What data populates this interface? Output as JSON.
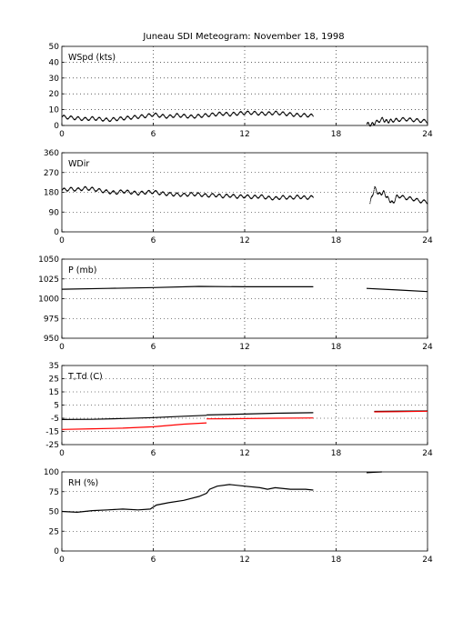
{
  "title": "Juneau SDI Meteogram:  November 18, 1998",
  "chart_data": [
    {
      "type": "scatter",
      "label": "WSpd (kts)",
      "x_ticks": [
        0,
        6,
        12,
        18,
        24
      ],
      "y_ticks": [
        0,
        10,
        20,
        30,
        40,
        50
      ],
      "xlim": [
        0,
        24
      ],
      "ylim": [
        0,
        50
      ],
      "grid": true,
      "series": [
        {
          "color": "#000000",
          "style": "dots",
          "segments": [
            [
              [
                0.0,
                5.5
              ],
              [
                0.5,
                5.0
              ],
              [
                1.0,
                4.5
              ],
              [
                1.5,
                4.0
              ],
              [
                2.0,
                4.5
              ],
              [
                2.5,
                4.0
              ],
              [
                3.0,
                3.5
              ],
              [
                3.5,
                4.0
              ],
              [
                4.0,
                4.5
              ],
              [
                4.5,
                5.0
              ],
              [
                5.0,
                5.5
              ],
              [
                5.5,
                6.0
              ],
              [
                6.0,
                7.0
              ],
              [
                6.5,
                6.0
              ],
              [
                7.0,
                5.5
              ],
              [
                7.5,
                6.5
              ],
              [
                8.0,
                6.0
              ],
              [
                8.5,
                5.5
              ],
              [
                9.0,
                6.0
              ],
              [
                9.5,
                6.5
              ],
              [
                10.0,
                7.0
              ],
              [
                10.5,
                7.5
              ],
              [
                11.0,
                7.0
              ],
              [
                11.5,
                7.5
              ],
              [
                12.0,
                8.0
              ],
              [
                12.5,
                8.0
              ],
              [
                13.0,
                7.5
              ],
              [
                13.5,
                7.5
              ],
              [
                14.0,
                8.0
              ],
              [
                14.5,
                7.5
              ],
              [
                15.0,
                7.0
              ],
              [
                15.5,
                6.5
              ],
              [
                16.0,
                6.5
              ],
              [
                16.5,
                6.0
              ]
            ],
            [
              [
                20.0,
                1.0
              ],
              [
                20.3,
                0.5
              ],
              [
                20.6,
                2.0
              ],
              [
                21.0,
                4.0
              ],
              [
                21.3,
                2.5
              ],
              [
                21.6,
                3.0
              ],
              [
                22.0,
                3.5
              ],
              [
                22.5,
                4.0
              ],
              [
                23.0,
                3.5
              ],
              [
                23.5,
                3.0
              ],
              [
                24.0,
                2.5
              ]
            ]
          ]
        }
      ]
    },
    {
      "type": "scatter",
      "label": "WDir",
      "x_ticks": [
        0,
        6,
        12,
        18,
        24
      ],
      "y_ticks": [
        0,
        90,
        180,
        270,
        360
      ],
      "xlim": [
        0,
        24
      ],
      "ylim": [
        0,
        360
      ],
      "grid": true,
      "series": [
        {
          "color": "#000000",
          "style": "dots",
          "segments": [
            [
              [
                0.0,
                190
              ],
              [
                0.5,
                195
              ],
              [
                1.0,
                192
              ],
              [
                1.5,
                198
              ],
              [
                2.0,
                195
              ],
              [
                2.5,
                188
              ],
              [
                3.0,
                182
              ],
              [
                3.5,
                178
              ],
              [
                4.0,
                185
              ],
              [
                4.5,
                180
              ],
              [
                5.0,
                175
              ],
              [
                5.5,
                180
              ],
              [
                6.0,
                182
              ],
              [
                6.5,
                175
              ],
              [
                7.0,
                172
              ],
              [
                7.5,
                170
              ],
              [
                8.0,
                168
              ],
              [
                8.5,
                172
              ],
              [
                9.0,
                170
              ],
              [
                9.5,
                165
              ],
              [
                10.0,
                168
              ],
              [
                10.5,
                162
              ],
              [
                11.0,
                165
              ],
              [
                11.5,
                160
              ],
              [
                12.0,
                162
              ],
              [
                12.5,
                158
              ],
              [
                13.0,
                162
              ],
              [
                13.5,
                155
              ],
              [
                14.0,
                152
              ],
              [
                14.5,
                158
              ],
              [
                15.0,
                155
              ],
              [
                15.5,
                160
              ],
              [
                16.0,
                155
              ],
              [
                16.5,
                158
              ]
            ],
            [
              [
                20.2,
                130
              ],
              [
                20.5,
                200
              ],
              [
                20.8,
                170
              ],
              [
                21.1,
                180
              ],
              [
                21.4,
                150
              ],
              [
                21.7,
                130
              ],
              [
                22.0,
                165
              ],
              [
                22.5,
                155
              ],
              [
                23.0,
                150
              ],
              [
                23.5,
                140
              ],
              [
                24.0,
                135
              ]
            ]
          ]
        }
      ]
    },
    {
      "type": "line",
      "label": "P (mb)",
      "x_ticks": [
        0,
        6,
        12,
        18,
        24
      ],
      "y_ticks": [
        950,
        975,
        1000,
        1025,
        1050
      ],
      "xlim": [
        0,
        24
      ],
      "ylim": [
        950,
        1050
      ],
      "grid": true,
      "series": [
        {
          "color": "#000000",
          "style": "line",
          "segments": [
            [
              [
                0,
                1012
              ],
              [
                3,
                1013
              ],
              [
                6,
                1014
              ],
              [
                9,
                1015.5
              ],
              [
                12,
                1015
              ],
              [
                16.5,
                1015
              ]
            ],
            [
              [
                20,
                1013
              ],
              [
                22,
                1011
              ],
              [
                24,
                1009
              ]
            ]
          ]
        }
      ]
    },
    {
      "type": "line",
      "label": "T,Td (C)",
      "x_ticks": [
        0,
        6,
        12,
        18,
        24
      ],
      "y_ticks": [
        -25,
        -15,
        -5,
        5,
        15,
        25,
        35
      ],
      "xlim": [
        0,
        24
      ],
      "ylim": [
        -25,
        35
      ],
      "grid": true,
      "series": [
        {
          "color": "#000000",
          "style": "line",
          "segments": [
            [
              [
                0,
                -6
              ],
              [
                2,
                -5.8
              ],
              [
                4,
                -5.2
              ],
              [
                6,
                -4.5
              ],
              [
                8,
                -3.5
              ],
              [
                9.5,
                -2.8
              ]
            ],
            [
              [
                9.5,
                -2.5
              ],
              [
                12,
                -1.8
              ],
              [
                14,
                -1.2
              ],
              [
                16.5,
                -0.8
              ]
            ],
            [
              [
                20.5,
                0.2
              ],
              [
                22,
                0.4
              ],
              [
                24,
                0.5
              ]
            ]
          ]
        },
        {
          "color": "#ff0000",
          "style": "line",
          "segments": [
            [
              [
                0,
                -13.5
              ],
              [
                2,
                -13
              ],
              [
                4,
                -12.5
              ],
              [
                6,
                -11.5
              ],
              [
                8,
                -9.5
              ],
              [
                9.5,
                -8.5
              ]
            ],
            [
              [
                9.5,
                -5.5
              ],
              [
                12,
                -5.3
              ],
              [
                14,
                -5
              ],
              [
                16.5,
                -4.8
              ]
            ],
            [
              [
                20.5,
                -0.2
              ],
              [
                22,
                0
              ],
              [
                24,
                0.3
              ]
            ]
          ]
        }
      ]
    },
    {
      "type": "line",
      "label": "RH (%)",
      "x_ticks": [
        0,
        6,
        12,
        18,
        24
      ],
      "y_ticks": [
        0,
        25,
        50,
        75,
        100
      ],
      "xlim": [
        0,
        24
      ],
      "ylim": [
        0,
        100
      ],
      "grid": true,
      "series": [
        {
          "color": "#000000",
          "style": "line",
          "segments": [
            [
              [
                0,
                50
              ],
              [
                1,
                49
              ],
              [
                2,
                51
              ],
              [
                3,
                52
              ],
              [
                4,
                53
              ],
              [
                5,
                52
              ],
              [
                5.8,
                53
              ],
              [
                6.2,
                58
              ],
              [
                7,
                61
              ],
              [
                8,
                64
              ],
              [
                9,
                69
              ],
              [
                9.5,
                73
              ],
              [
                9.7,
                78
              ],
              [
                10.2,
                82
              ],
              [
                11,
                84
              ],
              [
                12,
                82
              ],
              [
                13,
                80
              ],
              [
                13.5,
                78
              ],
              [
                14,
                80
              ],
              [
                15,
                78
              ],
              [
                16,
                78
              ],
              [
                16.5,
                77
              ]
            ],
            [
              [
                20,
                99
              ],
              [
                20.5,
                99.5
              ],
              [
                21,
                100
              ]
            ]
          ]
        }
      ]
    }
  ]
}
